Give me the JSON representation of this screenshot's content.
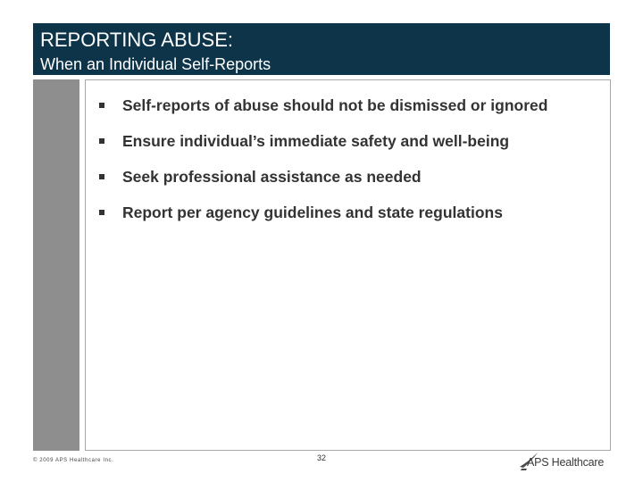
{
  "header": {
    "title": "REPORTING ABUSE:",
    "subtitle": "When an Individual Self-Reports"
  },
  "bullets": [
    "Self-reports of abuse should not be dismissed or ignored",
    "Ensure individual’s immediate safety and well-being",
    "Seek professional assistance as needed",
    "Report per agency guidelines and state regulations"
  ],
  "footer": {
    "copyright": "© 2009 APS Healthcare Inc.",
    "page_number": "32",
    "logo_text": "APS Healthcare"
  },
  "colors": {
    "header_bg": "#0e3449",
    "side_bar": "#8e8e8e",
    "text": "#333333"
  }
}
